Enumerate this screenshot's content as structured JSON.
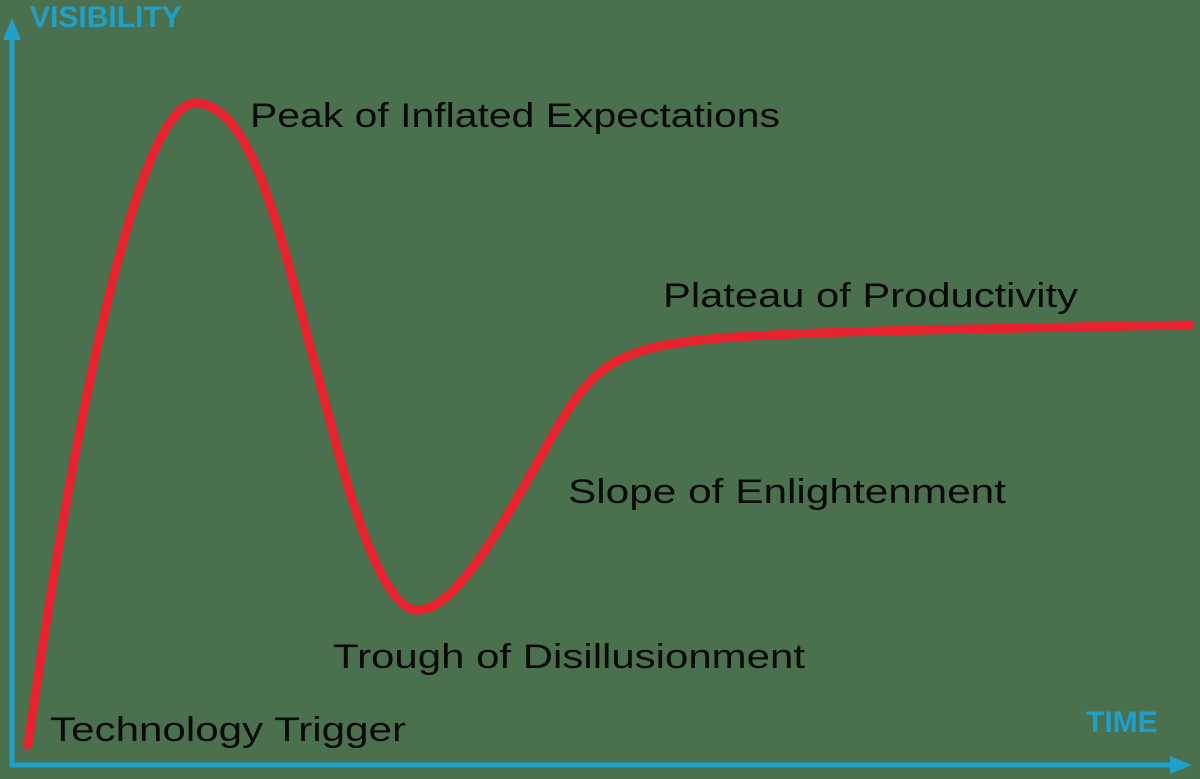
{
  "axes": {
    "y_label": "VISIBILITY",
    "x_label": "TIME"
  },
  "phases": {
    "technology_trigger": "Technology Trigger",
    "peak": "Peak of Inflated Expectations",
    "trough": "Trough of Disillusionment",
    "slope": "Slope of Enlightenment",
    "plateau": "Plateau of Productivity"
  },
  "colors": {
    "background": "#4b704e",
    "axis": "#1fa0c8",
    "curve": "#e8232f",
    "label": "#0a0a0a"
  }
}
